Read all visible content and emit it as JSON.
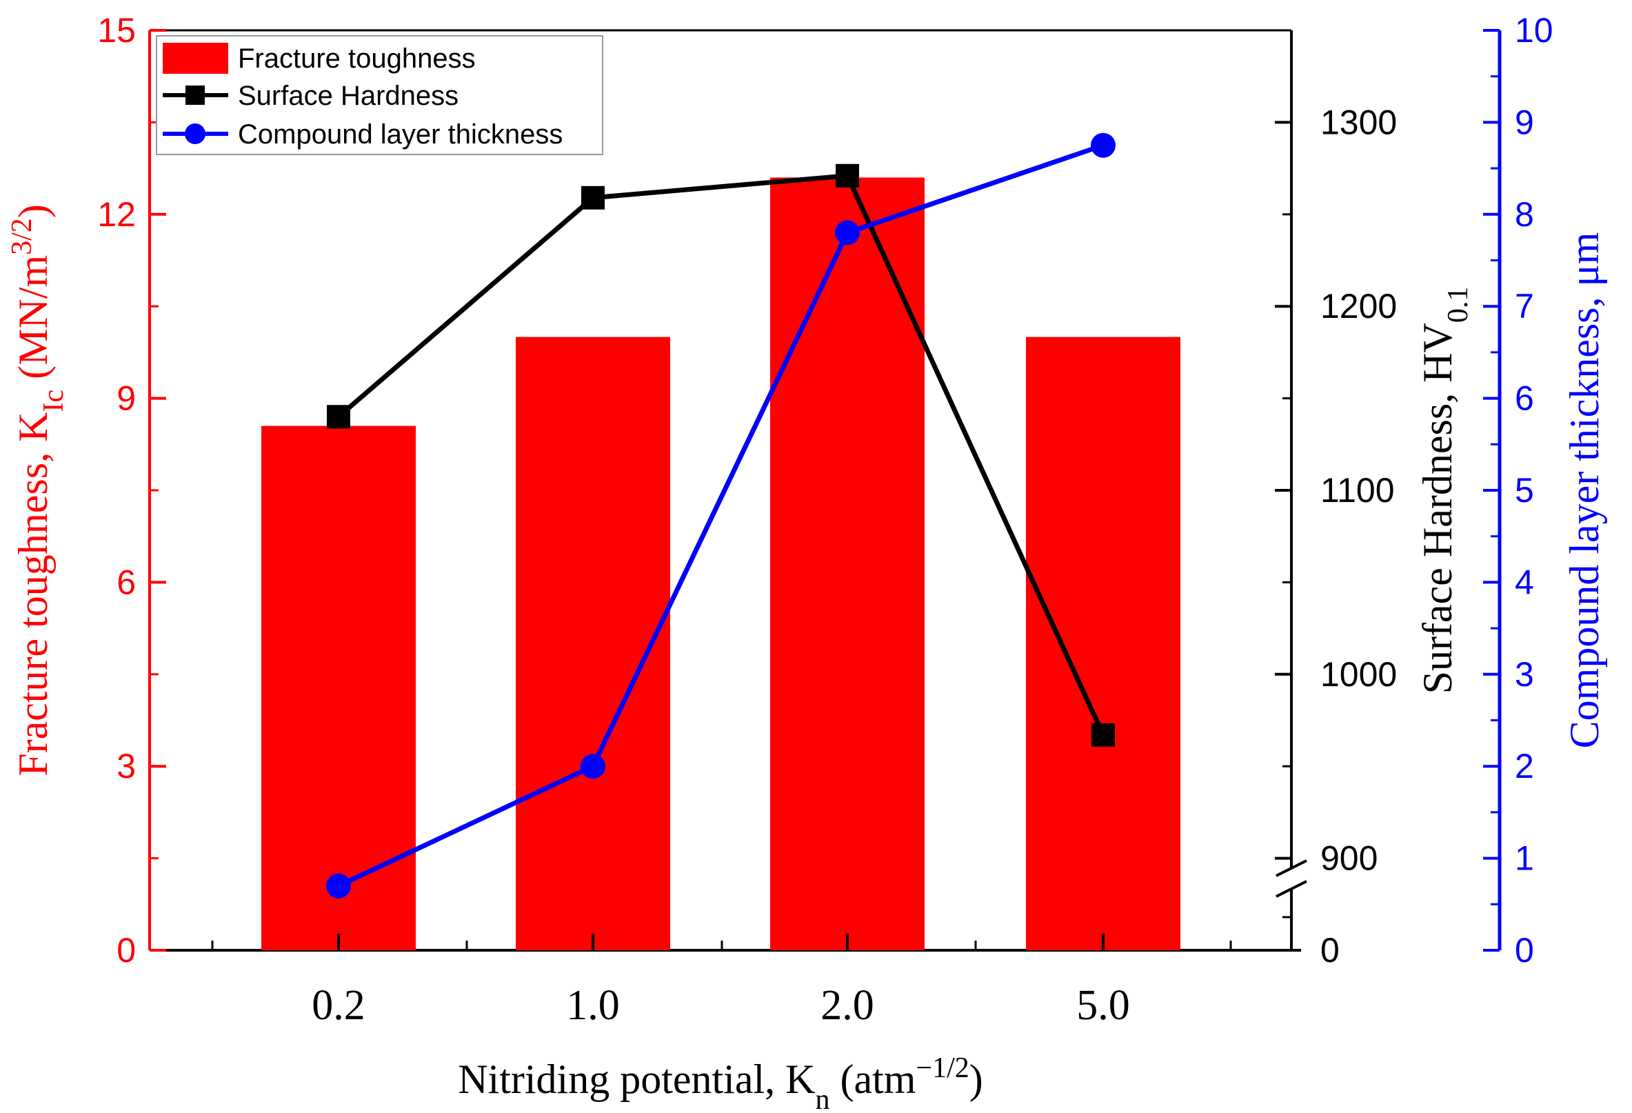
{
  "chart_data": {
    "type": "bar+line",
    "categories": [
      "0.2",
      "1.0",
      "2.0",
      "5.0"
    ],
    "series": [
      {
        "name": "Fracture toughness",
        "kind": "bar",
        "axis": "left",
        "color": "#ff0000",
        "values": [
          8.55,
          10.0,
          12.6,
          10.0
        ]
      },
      {
        "name": "Surface Hardness",
        "kind": "line",
        "marker": "square",
        "axis": "right-inner",
        "color": "#000000",
        "values": [
          1140,
          1259,
          1271,
          967
        ]
      },
      {
        "name": "Compound layer thickness",
        "kind": "line",
        "marker": "circle",
        "axis": "right-outer",
        "color": "#0000ff",
        "values": [
          0.7,
          2.0,
          7.8,
          8.75
        ]
      }
    ],
    "left_axis": {
      "label_prefix": "Fracture toughness, K",
      "label_sub": "Ic",
      "label_mid": " (MN/m",
      "label_sup": "3/2",
      "label_suffix": ")",
      "ylim": [
        0,
        15
      ],
      "ticks": [
        "0",
        "3",
        "6",
        "9",
        "12",
        "15"
      ],
      "color": "#ff0000"
    },
    "hardness_axis": {
      "label_prefix": "Surface Hardness, HV",
      "label_sub": "0.1",
      "ylim": [
        850,
        1350
      ],
      "ticks": [
        "900",
        "1000",
        "1100",
        "1200",
        "1300"
      ],
      "break_tick": "0",
      "color": "#000000"
    },
    "thickness_axis": {
      "label": "Compound layer thickness, μm",
      "ylim": [
        0,
        10
      ],
      "ticks": [
        "0",
        "1",
        "2",
        "3",
        "4",
        "5",
        "6",
        "7",
        "8",
        "9",
        "10"
      ],
      "color": "#0000ff"
    },
    "x_axis": {
      "label_prefix": "Nitriding potential, K",
      "label_sub": "n",
      "label_mid": " (atm",
      "label_sup": "−1/2",
      "label_suffix": ")"
    },
    "legend": {
      "position": "top-left",
      "entries": [
        "Fracture toughness",
        "Surface Hardness",
        "Compound layer thickness"
      ]
    }
  }
}
